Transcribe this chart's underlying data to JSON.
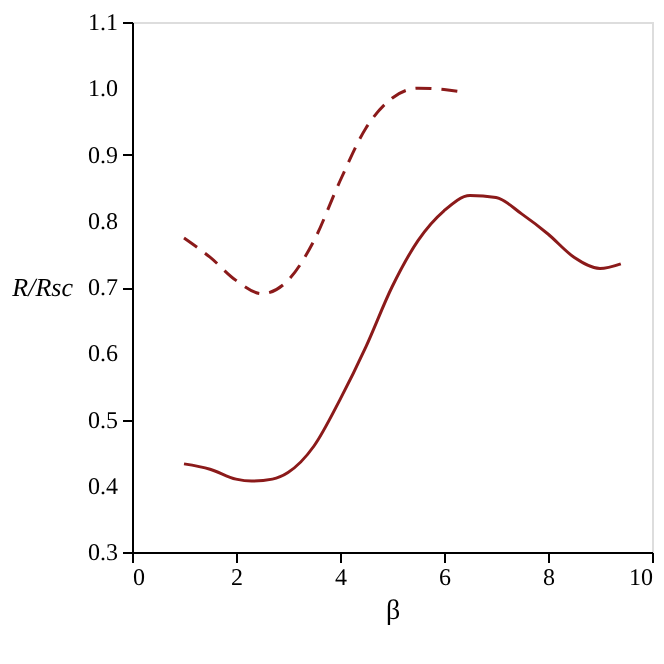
{
  "chart_data": {
    "type": "line",
    "xlabel": "β",
    "ylabel": "R/Rsc",
    "xlim": [
      0,
      10
    ],
    "ylim": [
      0.3,
      1.1
    ],
    "xticks": [
      0,
      2,
      4,
      6,
      8,
      10
    ],
    "yticks": [
      {
        "value": 0.3,
        "label": "0.3"
      },
      {
        "value": 0.4,
        "label": "0.4"
      },
      {
        "value": 0.5,
        "label": "0.5"
      },
      {
        "value": 0.6,
        "label": "0.6"
      },
      {
        "value": 0.7,
        "label": "0.7"
      },
      {
        "value": 0.8,
        "label": "0.8"
      },
      {
        "value": 0.9,
        "label": "0.9"
      },
      {
        "value": 1.0,
        "label": "1.0"
      },
      {
        "value": 1.1,
        "label": "1.1"
      }
    ],
    "grid": false,
    "marker": "none",
    "series": [
      {
        "color": "#8b1a1a",
        "line_style": "solid",
        "x": [
          1,
          1.5,
          2,
          2.3,
          2.7,
          3,
          3.5,
          4,
          4.5,
          5,
          5.5,
          6,
          6.5,
          7,
          7.5,
          8,
          8.5,
          9,
          9.4
        ],
        "values": [
          0.433,
          0.425,
          0.41,
          0.407,
          0.41,
          0.42,
          0.46,
          0.53,
          0.61,
          0.7,
          0.77,
          0.815,
          0.838,
          0.835,
          0.81,
          0.78,
          0.745,
          0.728,
          0.735
        ]
      },
      {
        "color": "#8b1a1a",
        "line_style": "dashed",
        "x": [
          1,
          1.5,
          2,
          2.5,
          3,
          3.5,
          4,
          4.5,
          5,
          5.5,
          6,
          6.3
        ],
        "values": [
          0.774,
          0.745,
          0.71,
          0.69,
          0.71,
          0.77,
          0.86,
          0.94,
          0.985,
          1.0,
          0.998,
          0.995
        ]
      }
    ]
  }
}
